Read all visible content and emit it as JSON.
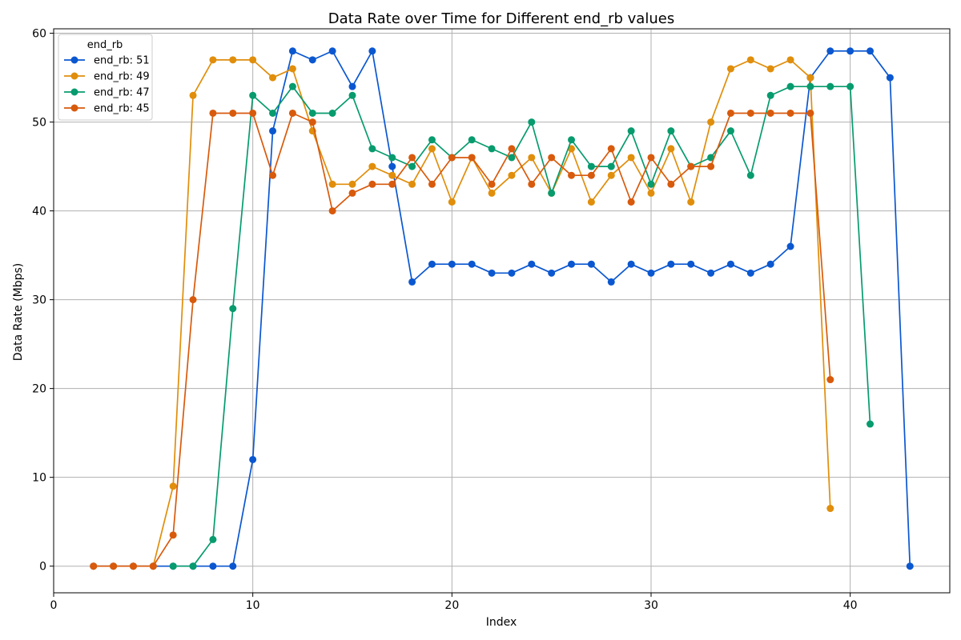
{
  "chart_data": {
    "type": "line",
    "title": "Data Rate over Time for Different end_rb values",
    "xlabel": "Index",
    "ylabel": "Data Rate (Mbps)",
    "xlim": [
      0,
      45
    ],
    "ylim": [
      -3,
      60.5
    ],
    "xticks": [
      0,
      10,
      20,
      30,
      40
    ],
    "yticks": [
      0,
      10,
      20,
      30,
      40,
      50,
      60
    ],
    "grid": true,
    "legend_title": "end_rb",
    "legend_position": "top-left",
    "series": [
      {
        "name": "end_rb: 51",
        "color": "#0b57d0",
        "x": [
          2,
          3,
          4,
          5,
          6,
          7,
          8,
          9,
          10,
          11,
          12,
          13,
          14,
          15,
          16,
          17,
          18,
          19,
          20,
          21,
          22,
          23,
          24,
          25,
          26,
          27,
          28,
          29,
          30,
          31,
          32,
          33,
          34,
          35,
          36,
          37,
          38,
          39,
          40,
          41,
          42,
          43
        ],
        "y": [
          0,
          0,
          0,
          0,
          0,
          0,
          0,
          0,
          12,
          49,
          58,
          57,
          58,
          54,
          58,
          45,
          32,
          34,
          34,
          34,
          33,
          33,
          34,
          33,
          34,
          34,
          32,
          34,
          33,
          34,
          34,
          33,
          34,
          33,
          34,
          36,
          55,
          58,
          58,
          58,
          55,
          0
        ]
      },
      {
        "name": "end_rb: 49",
        "color": "#e08e0b",
        "x": [
          2,
          3,
          4,
          5,
          6,
          7,
          8,
          9,
          10,
          11,
          12,
          13,
          14,
          15,
          16,
          17,
          18,
          19,
          20,
          21,
          22,
          23,
          24,
          25,
          26,
          27,
          28,
          29,
          30,
          31,
          32,
          33,
          34,
          35,
          36,
          37,
          38,
          39
        ],
        "y": [
          0,
          0,
          0,
          0,
          9,
          53,
          57,
          57,
          57,
          55,
          56,
          49,
          43,
          43,
          45,
          44,
          43,
          47,
          41,
          46,
          42,
          44,
          46,
          42,
          47,
          41,
          44,
          46,
          42,
          47,
          41,
          50,
          56,
          57,
          56,
          57,
          55,
          6.5
        ]
      },
      {
        "name": "end_rb: 47",
        "color": "#079b6e",
        "x": [
          6,
          7,
          8,
          9,
          10,
          11,
          12,
          13,
          14,
          15,
          16,
          17,
          18,
          19,
          20,
          21,
          22,
          23,
          24,
          25,
          26,
          27,
          28,
          29,
          30,
          31,
          32,
          33,
          34,
          35,
          36,
          37,
          38,
          39,
          40,
          41
        ],
        "y": [
          0,
          0,
          3,
          29,
          53,
          51,
          54,
          51,
          51,
          53,
          47,
          46,
          45,
          48,
          46,
          48,
          47,
          46,
          50,
          42,
          48,
          45,
          45,
          49,
          43,
          49,
          45,
          46,
          49,
          44,
          53,
          54,
          54,
          54,
          54,
          16
        ]
      },
      {
        "name": "end_rb: 45",
        "color": "#d85a0c",
        "x": [
          2,
          3,
          4,
          5,
          6,
          7,
          8,
          9,
          10,
          11,
          12,
          13,
          14,
          15,
          16,
          17,
          18,
          19,
          20,
          21,
          22,
          23,
          24,
          25,
          26,
          27,
          28,
          29,
          30,
          31,
          32,
          33,
          34,
          35,
          36,
          37,
          38,
          39
        ],
        "y": [
          0,
          0,
          0,
          0,
          3.5,
          30,
          51,
          51,
          51,
          44,
          51,
          50,
          40,
          42,
          43,
          43,
          46,
          43,
          46,
          46,
          43,
          47,
          43,
          46,
          44,
          44,
          47,
          41,
          46,
          43,
          45,
          45,
          51,
          51,
          51,
          51,
          51,
          21
        ]
      }
    ]
  }
}
